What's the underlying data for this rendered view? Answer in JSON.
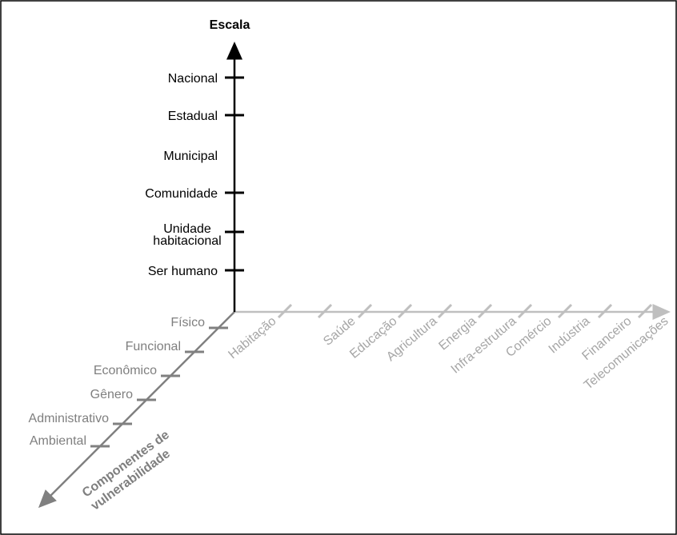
{
  "diagram": {
    "scale_axis": {
      "title": "Escala",
      "levels": [
        {
          "label": "Nacional",
          "tick": true
        },
        {
          "label": "Estadual",
          "tick": true
        },
        {
          "label": "Municipal",
          "tick": false
        },
        {
          "label": "Comunidade",
          "tick": true
        },
        {
          "label": "Unidade habitacional",
          "tick": true
        },
        {
          "label": "Ser humano",
          "tick": true
        }
      ]
    },
    "components_axis": {
      "title_line1": "Componentes de",
      "title_line2": "vulnerabilidade",
      "items": [
        "Físico",
        "Funcional",
        "Econômico",
        "Gênero",
        "Administrativo",
        "Ambiental"
      ]
    },
    "sectors_axis": {
      "items": [
        "Habitação",
        "Saúde",
        "Educação",
        "Agricultura",
        "Energia",
        "Infra-estrutura",
        "Comércio",
        "Indústria",
        "Financeiro",
        "Telecomunicações"
      ]
    },
    "colors": {
      "scale_axis": "#000000",
      "components_axis": "#808080",
      "sectors_axis": "#bfbfbf"
    }
  }
}
